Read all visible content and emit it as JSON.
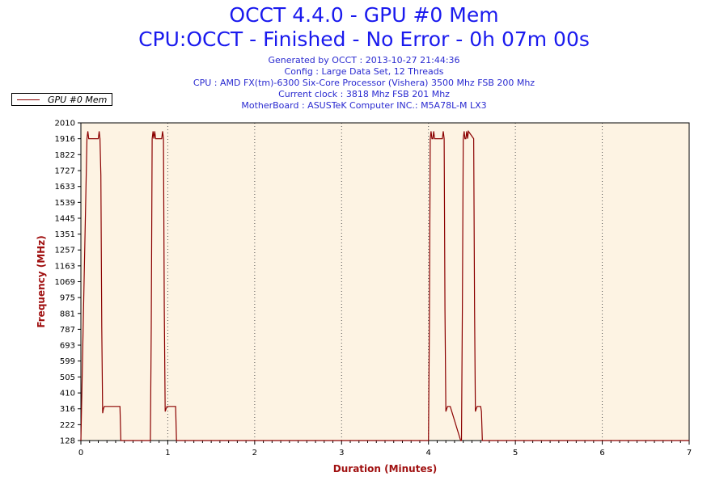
{
  "header": {
    "title": "OCCT 4.4.0 - GPU #0 Mem",
    "subtitle": "CPU:OCCT - Finished - No Error - 0h 07m 00s",
    "info": [
      "Generated by OCCT : 2013-10-27 21:44:36",
      "Config : Large Data Set, 12 Threads",
      "CPU : AMD FX(tm)-6300 Six-Core Processor (Vishera) 3500 Mhz FSB 200 Mhz",
      "Current clock : 3818 Mhz FSB 201 Mhz",
      "MotherBoard : ASUSTeK Computer INC.: M5A78L-M LX3"
    ]
  },
  "colors": {
    "plot_background": "#fdf3e3",
    "series_line": "#8b0000",
    "axis_title": "#a01010",
    "title": "#1a1aee"
  },
  "chart_data": {
    "type": "line",
    "title": "OCCT 4.4.0 - GPU #0 Mem",
    "xlabel": "Duration (Minutes)",
    "ylabel": "Frequency (MHz)",
    "xlim": [
      0,
      7
    ],
    "ylim": [
      128,
      2010
    ],
    "x_ticks": [
      "0",
      "1",
      "2",
      "3",
      "4",
      "5",
      "6",
      "7"
    ],
    "y_ticks": [
      "128",
      "222",
      "316",
      "410",
      "505",
      "599",
      "693",
      "787",
      "881",
      "975",
      "1069",
      "1163",
      "1257",
      "1351",
      "1445",
      "1539",
      "1633",
      "1727",
      "1822",
      "1916",
      "2010"
    ],
    "grid": "vertical dotted",
    "legend": "top-left",
    "series": [
      {
        "name": "GPU #0 Mem",
        "x": [
          0,
          0.07,
          0.08,
          0.09,
          0.2,
          0.21,
          0.22,
          0.23,
          0.24,
          0.25,
          0.26,
          0.27,
          0.28,
          0.45,
          0.46,
          0.47,
          0.8,
          0.81,
          0.82,
          0.83,
          0.84,
          0.85,
          0.86,
          0.93,
          0.94,
          0.95,
          0.96,
          0.97,
          0.98,
          0.99,
          1.09,
          1.1,
          1.11,
          4.0,
          4.01,
          4.02,
          4.03,
          4.04,
          4.05,
          4.06,
          4.07,
          4.16,
          4.17,
          4.18,
          4.19,
          4.2,
          4.21,
          4.22,
          4.23,
          4.24,
          4.25,
          4.37,
          4.38,
          4.39,
          4.4,
          4.41,
          4.42,
          4.43,
          4.44,
          4.45,
          4.46,
          4.52,
          4.53,
          4.54,
          4.55,
          4.56,
          4.57,
          4.58,
          4.59,
          4.6,
          4.61,
          4.62,
          4.63,
          4.64,
          4.65,
          4.66,
          7.0
        ],
        "values": [
          128,
          1916,
          1960,
          1916,
          1916,
          1960,
          1916,
          1700,
          800,
          290,
          316,
          330,
          330,
          330,
          128,
          128,
          128,
          800,
          1916,
          1960,
          1916,
          1960,
          1916,
          1916,
          1960,
          1916,
          900,
          300,
          316,
          330,
          330,
          128,
          128,
          128,
          800,
          1916,
          1960,
          1916,
          1916,
          1960,
          1916,
          1916,
          1960,
          1916,
          900,
          300,
          316,
          330,
          330,
          330,
          330,
          128,
          128,
          900,
          1916,
          1960,
          1916,
          1916,
          1960,
          1916,
          1960,
          1916,
          900,
          300,
          316,
          330,
          330,
          330,
          330,
          330,
          300,
          128,
          128,
          128,
          128,
          128,
          128
        ]
      }
    ]
  }
}
